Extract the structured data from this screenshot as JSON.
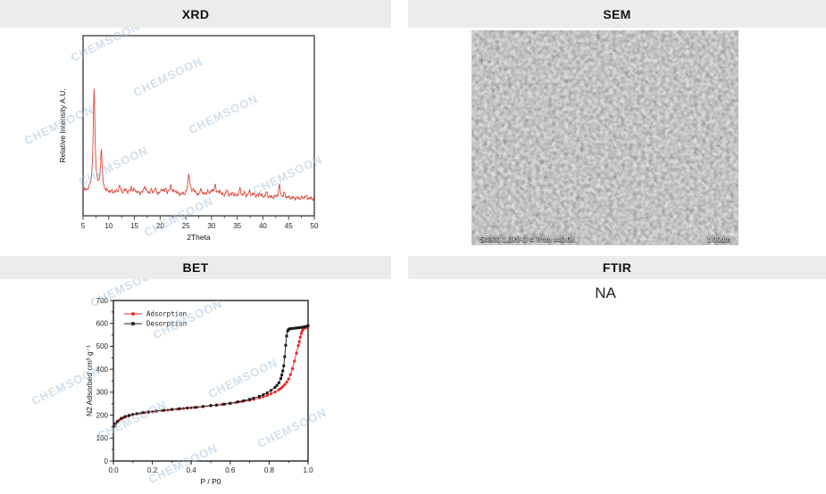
{
  "panels": {
    "xrd": {
      "title": "XRD"
    },
    "sem": {
      "title": "SEM",
      "caption": "S4800 1.0kV-D 4.7mm x40.0k",
      "scale_label": "1.00um"
    },
    "bet": {
      "title": "BET"
    },
    "ftir": {
      "title": "FTIR",
      "value": "NA"
    }
  },
  "watermark": "CHEMSOON",
  "chart_data": [
    {
      "id": "xrd",
      "type": "line",
      "title": "XRD",
      "xlabel": "2Theta",
      "ylabel": "Relative Intensity A.U.",
      "xlim": [
        5,
        50
      ],
      "x_ticks": [
        5,
        10,
        15,
        20,
        25,
        30,
        35,
        40,
        45,
        50
      ],
      "x_minor_step": 2.5,
      "grid": false,
      "legend": false,
      "line_color": "#e04438",
      "series": [
        {
          "name": "XRD pattern",
          "peaks_2theta_relheight_width": [
            [
              7.15,
              1.0,
              0.22
            ],
            [
              8.55,
              0.4,
              0.2
            ],
            [
              12.1,
              0.065,
              0.2
            ],
            [
              13.3,
              0.03,
              0.2
            ],
            [
              14.4,
              0.055,
              0.18
            ],
            [
              15.1,
              0.035,
              0.18
            ],
            [
              17.0,
              0.075,
              0.2
            ],
            [
              18.2,
              0.03,
              0.2
            ],
            [
              19.0,
              0.05,
              0.2
            ],
            [
              20.4,
              0.05,
              0.2
            ],
            [
              21.1,
              0.045,
              0.2
            ],
            [
              22.1,
              0.085,
              0.22
            ],
            [
              23.0,
              0.035,
              0.2
            ],
            [
              25.6,
              0.21,
              0.22
            ],
            [
              26.5,
              0.055,
              0.2
            ],
            [
              28.0,
              0.055,
              0.2
            ],
            [
              29.2,
              0.04,
              0.2
            ],
            [
              30.0,
              0.05,
              0.18
            ],
            [
              30.7,
              0.11,
              0.2
            ],
            [
              31.6,
              0.05,
              0.2
            ],
            [
              33.0,
              0.05,
              0.22
            ],
            [
              34.1,
              0.03,
              0.2
            ],
            [
              35.5,
              0.065,
              0.22
            ],
            [
              36.4,
              0.03,
              0.2
            ],
            [
              37.4,
              0.05,
              0.22
            ],
            [
              38.3,
              0.03,
              0.2
            ],
            [
              39.4,
              0.04,
              0.2
            ],
            [
              40.7,
              0.045,
              0.2
            ],
            [
              43.2,
              0.115,
              0.2
            ],
            [
              44.2,
              0.04,
              0.2
            ],
            [
              48.3,
              0.02,
              0.3
            ]
          ]
        }
      ]
    },
    {
      "id": "bet",
      "type": "line",
      "title": "BET",
      "xlabel": "P / P0",
      "ylabel": "N2 Adsorbed cm³ g⁻¹",
      "xlim": [
        0.0,
        1.0
      ],
      "ylim": [
        0,
        700
      ],
      "x_ticks": [
        0.0,
        0.2,
        0.4,
        0.6,
        0.8,
        1.0
      ],
      "y_ticks": [
        0,
        100,
        200,
        300,
        400,
        500,
        600,
        700
      ],
      "x_minor_step": 0.1,
      "y_minor_step": 50,
      "grid": false,
      "legend_position": "top-left",
      "series": [
        {
          "name": "Adsorption",
          "color": "#ee2222",
          "marker": "circle",
          "points": [
            [
              0.005,
              152
            ],
            [
              0.01,
              160
            ],
            [
              0.02,
              170
            ],
            [
              0.03,
              178
            ],
            [
              0.04,
              184
            ],
            [
              0.05,
              188
            ],
            [
              0.06,
              192
            ],
            [
              0.08,
              197
            ],
            [
              0.1,
              202
            ],
            [
              0.12,
              205
            ],
            [
              0.14,
              208
            ],
            [
              0.16,
              211
            ],
            [
              0.18,
              213
            ],
            [
              0.2,
              215
            ],
            [
              0.22,
              217
            ],
            [
              0.25,
              220
            ],
            [
              0.28,
              222
            ],
            [
              0.3,
              224
            ],
            [
              0.33,
              226
            ],
            [
              0.36,
              229
            ],
            [
              0.4,
              232
            ],
            [
              0.43,
              234
            ],
            [
              0.46,
              237
            ],
            [
              0.5,
              241
            ],
            [
              0.53,
              244
            ],
            [
              0.56,
              247
            ],
            [
              0.6,
              251
            ],
            [
              0.63,
              255
            ],
            [
              0.66,
              259
            ],
            [
              0.7,
              265
            ],
            [
              0.72,
              269
            ],
            [
              0.75,
              275
            ],
            [
              0.77,
              280
            ],
            [
              0.79,
              286
            ],
            [
              0.81,
              293
            ],
            [
              0.83,
              301
            ],
            [
              0.85,
              311
            ],
            [
              0.86,
              317
            ],
            [
              0.87,
              324
            ],
            [
              0.88,
              333
            ],
            [
              0.89,
              344
            ],
            [
              0.9,
              358
            ],
            [
              0.91,
              377
            ],
            [
              0.92,
              403
            ],
            [
              0.93,
              436
            ],
            [
              0.94,
              470
            ],
            [
              0.95,
              503
            ],
            [
              0.955,
              520
            ],
            [
              0.96,
              540
            ],
            [
              0.965,
              556
            ],
            [
              0.97,
              568
            ],
            [
              0.975,
              575
            ],
            [
              0.98,
              579
            ],
            [
              0.99,
              582
            ],
            [
              1.0,
              587
            ]
          ]
        },
        {
          "name": "Desorption",
          "color": "#1a1a1a",
          "marker": "square",
          "points": [
            [
              1.0,
              590
            ],
            [
              0.99,
              587
            ],
            [
              0.98,
              585
            ],
            [
              0.97,
              583
            ],
            [
              0.96,
              582
            ],
            [
              0.95,
              581
            ],
            [
              0.94,
              580
            ],
            [
              0.93,
              579
            ],
            [
              0.92,
              578
            ],
            [
              0.91,
              577
            ],
            [
              0.905,
              576
            ],
            [
              0.9,
              574
            ],
            [
              0.895,
              567
            ],
            [
              0.89,
              545
            ],
            [
              0.885,
              505
            ],
            [
              0.88,
              455
            ],
            [
              0.875,
              415
            ],
            [
              0.87,
              393
            ],
            [
              0.865,
              375
            ],
            [
              0.86,
              360
            ],
            [
              0.85,
              341
            ],
            [
              0.84,
              330
            ],
            [
              0.83,
              321
            ],
            [
              0.81,
              308
            ],
            [
              0.79,
              297
            ],
            [
              0.77,
              289
            ],
            [
              0.75,
              282
            ],
            [
              0.72,
              274
            ],
            [
              0.7,
              269
            ],
            [
              0.67,
              263
            ],
            [
              0.64,
              258
            ],
            [
              0.6,
              252
            ],
            [
              0.57,
              248
            ],
            [
              0.53,
              244
            ],
            [
              0.5,
              242
            ],
            [
              0.46,
              238
            ],
            [
              0.42,
              234
            ],
            [
              0.38,
              231
            ],
            [
              0.34,
              228
            ],
            [
              0.3,
              225
            ],
            [
              0.26,
              221
            ],
            [
              0.22,
              218
            ],
            [
              0.18,
              214
            ],
            [
              0.15,
              211
            ],
            [
              0.12,
              206
            ],
            [
              0.1,
              203
            ],
            [
              0.08,
              199
            ],
            [
              0.06,
              194
            ],
            [
              0.04,
              186
            ],
            [
              0.02,
              172
            ],
            [
              0.01,
              162
            ],
            [
              0.005,
              153
            ]
          ]
        }
      ]
    }
  ]
}
